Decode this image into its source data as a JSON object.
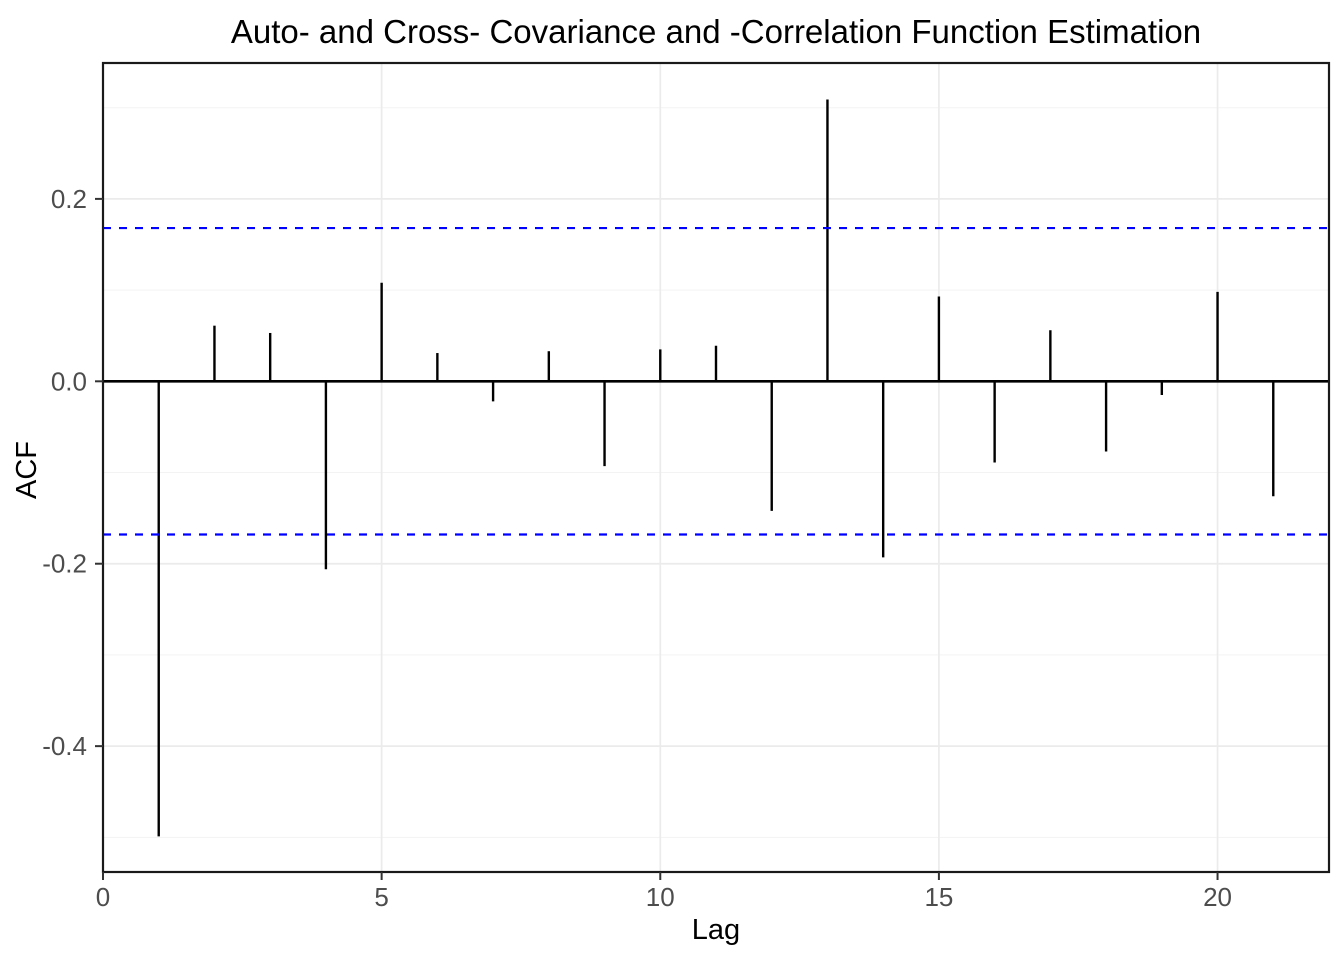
{
  "chart_data": {
    "type": "bar",
    "subtype": "acf-lollipop",
    "title": "Auto- and Cross- Covariance and -Correlation Function Estimation",
    "xlabel": "Lag",
    "ylabel": "ACF",
    "x": [
      1,
      2,
      3,
      4,
      5,
      6,
      7,
      8,
      9,
      10,
      11,
      12,
      13,
      14,
      15,
      16,
      17,
      18,
      19,
      20,
      21
    ],
    "values": [
      -0.499,
      0.061,
      0.053,
      -0.206,
      0.108,
      0.031,
      -0.022,
      0.033,
      -0.093,
      0.035,
      0.039,
      -0.142,
      0.309,
      -0.193,
      0.093,
      -0.089,
      0.056,
      -0.077,
      -0.015,
      0.098,
      -0.126
    ],
    "confidence_upper": 0.168,
    "confidence_lower": -0.168,
    "xlim": [
      0,
      22
    ],
    "ylim": [
      -0.538,
      0.349
    ],
    "x_ticks": [
      0,
      5,
      10,
      15,
      20
    ],
    "x_tick_labels": [
      "0",
      "5",
      "10",
      "15",
      "20"
    ],
    "y_ticks": [
      0.2,
      0.0,
      -0.2,
      -0.4
    ],
    "y_tick_labels": [
      "0.2",
      "0.0",
      "-0.2",
      "-0.4"
    ],
    "y_minor_gridlines": [
      0.3,
      0.1,
      -0.1,
      -0.3,
      -0.5
    ],
    "x_minor_gridlines": [],
    "grid": "on",
    "legend": "none",
    "colors": {
      "bar": "#000000",
      "zero_line": "#000000",
      "confidence_line": "#0000FF",
      "grid_major": "#EBEBEB",
      "grid_minor": "#F3F3F3",
      "panel_border": "#1a1a1a",
      "tick_mark": "#333333",
      "tick_label": "#4D4D4D",
      "title_text": "#000000",
      "background": "#FFFFFF"
    }
  }
}
